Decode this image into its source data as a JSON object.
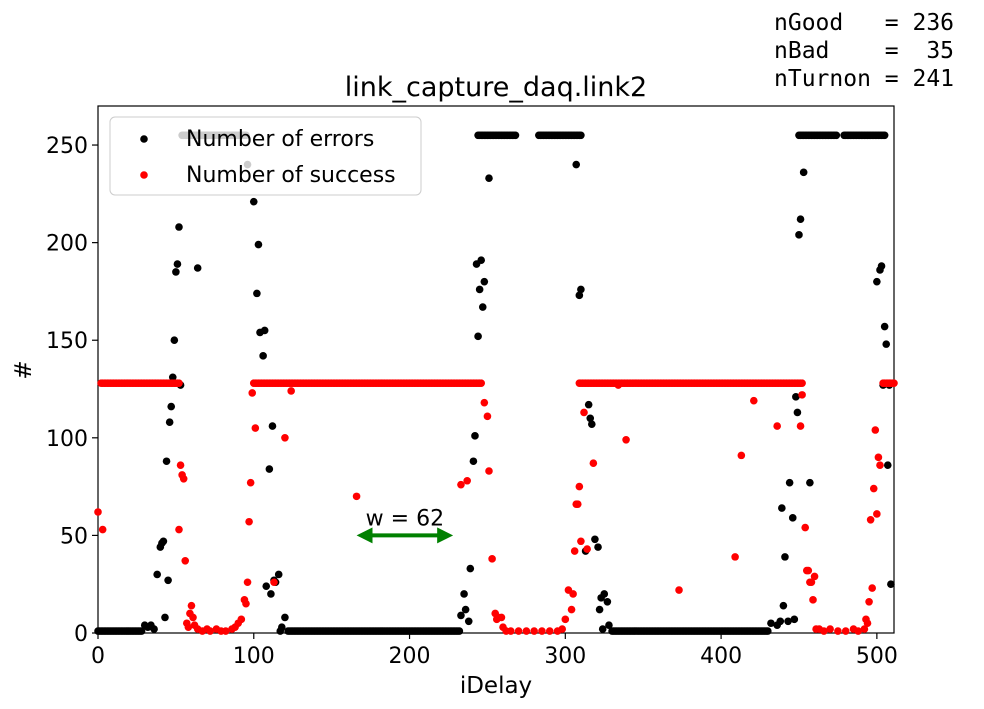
{
  "stats": {
    "lines": [
      "nGood   = 236",
      "nBad    =  35",
      "nTurnon = 241"
    ]
  },
  "chart_data": {
    "type": "scatter",
    "title": "link_capture_daq.link2",
    "xlabel": "iDelay",
    "ylabel": "#",
    "xlim": [
      0,
      511
    ],
    "ylim": [
      0,
      270
    ],
    "xticks": [
      0,
      100,
      200,
      300,
      400,
      500
    ],
    "yticks": [
      0,
      50,
      100,
      150,
      200,
      250
    ],
    "grid": false,
    "legend": {
      "placement": "top-left"
    },
    "annotation": {
      "text": "w = 62",
      "x_start": 166,
      "x_end": 228,
      "y": 50,
      "color": "#008000"
    },
    "series": [
      {
        "name": "Number of errors",
        "color": "#000000",
        "segments": [
          {
            "x_start": 0,
            "x_end": 28,
            "y": 1
          },
          {
            "x_start": 54,
            "x_end": 95,
            "y": 255
          },
          {
            "x_start": 122,
            "x_end": 232,
            "y": 1
          },
          {
            "x_start": 244,
            "x_end": 268,
            "y": 255
          },
          {
            "x_start": 283,
            "x_end": 310,
            "y": 255
          },
          {
            "x_start": 330,
            "x_end": 430,
            "y": 1
          },
          {
            "x_start": 450,
            "x_end": 474,
            "y": 255
          },
          {
            "x_start": 479,
            "x_end": 505,
            "y": 255
          }
        ],
        "points": [
          [
            30,
            4
          ],
          [
            32,
            3
          ],
          [
            34,
            4
          ],
          [
            36,
            2
          ],
          [
            38,
            30
          ],
          [
            40,
            44
          ],
          [
            41,
            46
          ],
          [
            42,
            47
          ],
          [
            43,
            8
          ],
          [
            44,
            88
          ],
          [
            45,
            27
          ],
          [
            46,
            108
          ],
          [
            47,
            116
          ],
          [
            48,
            131
          ],
          [
            49,
            150
          ],
          [
            50,
            185
          ],
          [
            51,
            189
          ],
          [
            52,
            208
          ],
          [
            53,
            127
          ],
          [
            64,
            187
          ],
          [
            96,
            240
          ],
          [
            100,
            221
          ],
          [
            102,
            174
          ],
          [
            103,
            199
          ],
          [
            104,
            154
          ],
          [
            106,
            142
          ],
          [
            107,
            155
          ],
          [
            108,
            24
          ],
          [
            110,
            84
          ],
          [
            111,
            20
          ],
          [
            112,
            106
          ],
          [
            113,
            27
          ],
          [
            114,
            26
          ],
          [
            116,
            30
          ],
          [
            117,
            1
          ],
          [
            118,
            3
          ],
          [
            120,
            8
          ],
          [
            233,
            9
          ],
          [
            235,
            20
          ],
          [
            236,
            12
          ],
          [
            238,
            6
          ],
          [
            239,
            33
          ],
          [
            241,
            88
          ],
          [
            242,
            101
          ],
          [
            243,
            189
          ],
          [
            244,
            152
          ],
          [
            245,
            176
          ],
          [
            246,
            191
          ],
          [
            247,
            167
          ],
          [
            248,
            180
          ],
          [
            251,
            233
          ],
          [
            307,
            240
          ],
          [
            309,
            173
          ],
          [
            310,
            176
          ],
          [
            313,
            42
          ],
          [
            315,
            117
          ],
          [
            316,
            110
          ],
          [
            317,
            107
          ],
          [
            319,
            48
          ],
          [
            321,
            44
          ],
          [
            322,
            12
          ],
          [
            323,
            18
          ],
          [
            324,
            2
          ],
          [
            325,
            20
          ],
          [
            327,
            16
          ],
          [
            328,
            4
          ],
          [
            432,
            5
          ],
          [
            436,
            4
          ],
          [
            438,
            6
          ],
          [
            439,
            64
          ],
          [
            440,
            14
          ],
          [
            441,
            39
          ],
          [
            443,
            6
          ],
          [
            444,
            77
          ],
          [
            446,
            59
          ],
          [
            447,
            7
          ],
          [
            448,
            121
          ],
          [
            449,
            113
          ],
          [
            450,
            204
          ],
          [
            451,
            212
          ],
          [
            453,
            236
          ],
          [
            457,
            77
          ],
          [
            500,
            180
          ],
          [
            502,
            186
          ],
          [
            503,
            188
          ],
          [
            504,
            127
          ],
          [
            505,
            157
          ],
          [
            506,
            148
          ],
          [
            507,
            86
          ],
          [
            508,
            127
          ],
          [
            509,
            25
          ]
        ]
      },
      {
        "name": "Number of success",
        "color": "#ff0000",
        "segments": [
          {
            "x_start": 2,
            "x_end": 52,
            "y": 128
          },
          {
            "x_start": 100,
            "x_end": 246,
            "y": 128
          },
          {
            "x_start": 309,
            "x_end": 452,
            "y": 128
          },
          {
            "x_start": 504,
            "x_end": 511,
            "y": 128
          }
        ],
        "points": [
          [
            0,
            62
          ],
          [
            3,
            53
          ],
          [
            52,
            53
          ],
          [
            53,
            86
          ],
          [
            54,
            81
          ],
          [
            55,
            79
          ],
          [
            56,
            37
          ],
          [
            57,
            5
          ],
          [
            58,
            3
          ],
          [
            59,
            10
          ],
          [
            60,
            14
          ],
          [
            61,
            8
          ],
          [
            62,
            4
          ],
          [
            64,
            2
          ],
          [
            67,
            1
          ],
          [
            70,
            2
          ],
          [
            72,
            1
          ],
          [
            76,
            2
          ],
          [
            79,
            1
          ],
          [
            82,
            1
          ],
          [
            86,
            2
          ],
          [
            88,
            3
          ],
          [
            90,
            5
          ],
          [
            92,
            7
          ],
          [
            94,
            17
          ],
          [
            95,
            15
          ],
          [
            96,
            26
          ],
          [
            97,
            57
          ],
          [
            98,
            77
          ],
          [
            99,
            123
          ],
          [
            101,
            105
          ],
          [
            113,
            26
          ],
          [
            120,
            100
          ],
          [
            124,
            124
          ],
          [
            166,
            70
          ],
          [
            233,
            76
          ],
          [
            237,
            78
          ],
          [
            248,
            118
          ],
          [
            250,
            111
          ],
          [
            251,
            83
          ],
          [
            253,
            38
          ],
          [
            255,
            10
          ],
          [
            256,
            7
          ],
          [
            257,
            8
          ],
          [
            259,
            8
          ],
          [
            260,
            3
          ],
          [
            262,
            1
          ],
          [
            265,
            1
          ],
          [
            270,
            1
          ],
          [
            275,
            1
          ],
          [
            280,
            1
          ],
          [
            285,
            1
          ],
          [
            290,
            1
          ],
          [
            295,
            1
          ],
          [
            298,
            2
          ],
          [
            300,
            7
          ],
          [
            302,
            22
          ],
          [
            304,
            12
          ],
          [
            305,
            20
          ],
          [
            306,
            42
          ],
          [
            307,
            66
          ],
          [
            308,
            66
          ],
          [
            309,
            75
          ],
          [
            310,
            47
          ],
          [
            312,
            113
          ],
          [
            314,
            43
          ],
          [
            318,
            87
          ],
          [
            334,
            127
          ],
          [
            339,
            99
          ],
          [
            373,
            22
          ],
          [
            409,
            39
          ],
          [
            413,
            91
          ],
          [
            421,
            119
          ],
          [
            436,
            106
          ],
          [
            451,
            106
          ],
          [
            452,
            122
          ],
          [
            454,
            54
          ],
          [
            455,
            32
          ],
          [
            456,
            32
          ],
          [
            457,
            26
          ],
          [
            458,
            26
          ],
          [
            459,
            17
          ],
          [
            460,
            29
          ],
          [
            461,
            2
          ],
          [
            463,
            2
          ],
          [
            466,
            1
          ],
          [
            470,
            2
          ],
          [
            475,
            1
          ],
          [
            480,
            1
          ],
          [
            485,
            2
          ],
          [
            488,
            1
          ],
          [
            492,
            2
          ],
          [
            493,
            7
          ],
          [
            494,
            5
          ],
          [
            495,
            16
          ],
          [
            496,
            58
          ],
          [
            497,
            23
          ],
          [
            498,
            74
          ],
          [
            499,
            104
          ],
          [
            500,
            61
          ],
          [
            501,
            90
          ],
          [
            502,
            86
          ]
        ]
      }
    ]
  }
}
